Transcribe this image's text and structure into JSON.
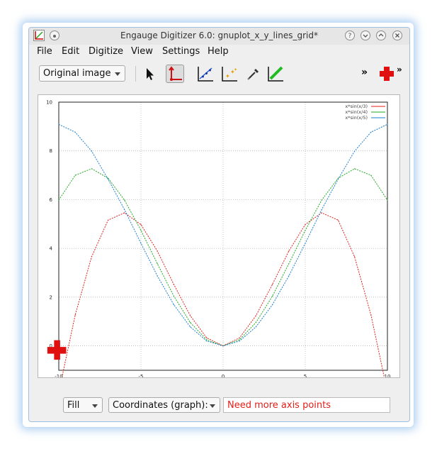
{
  "window": {
    "title": "Engauge Digitizer 6.0: gnuplot_x_y_lines_grid*"
  },
  "titlebar_buttons": {
    "help": "?"
  },
  "menu": {
    "file": "File",
    "edit": "Edit",
    "digitize": "Digitize",
    "view": "View",
    "settings": "Settings",
    "help": "Help"
  },
  "toolbar": {
    "background_select": "Original image",
    "overflow": "»",
    "overflow2": "»"
  },
  "tools": [
    "select-tool",
    "axis-point-tool",
    "curve-point-tool",
    "point-match-tool",
    "color-picker-tool",
    "segment-fill-tool",
    "checklist-tool"
  ],
  "statusbar": {
    "fill_select": "Fill",
    "coords_select": "Coordinates (graph):",
    "message": "Need more axis points"
  },
  "colors": {
    "red": "#e0201a",
    "green": "#22aa22",
    "blue": "#1a7fd0",
    "window_border": "#9fbfe0"
  },
  "chart_data": {
    "type": "line",
    "xlim": [
      -10,
      10
    ],
    "ylim": [
      -1,
      10
    ],
    "x_ticks": [
      "-10",
      "-5",
      "0",
      "5",
      "10"
    ],
    "y_ticks": [
      "10",
      "8",
      "6",
      "4",
      "2",
      "0"
    ],
    "grid": true,
    "legend": "top-right",
    "series": [
      {
        "name": "x*sin(x/3)",
        "color": "#e0201a",
        "x": [
          -10,
          -9,
          -8,
          -7,
          -6,
          -5,
          -4,
          -3,
          -2,
          -1,
          0,
          1,
          2,
          3,
          4,
          5,
          6,
          7,
          8,
          9,
          10
        ],
        "y": [
          -1.9,
          1.27,
          3.66,
          5.16,
          5.46,
          4.98,
          3.89,
          2.52,
          1.24,
          0.33,
          0,
          0.33,
          1.24,
          2.52,
          3.89,
          4.98,
          5.46,
          5.16,
          3.66,
          1.27,
          -1.9
        ]
      },
      {
        "name": "x*sin(x/4)",
        "color": "#22aa22",
        "x": [
          -10,
          -9,
          -8,
          -7,
          -6,
          -5,
          -4,
          -3,
          -2,
          -1,
          0,
          1,
          2,
          3,
          4,
          5,
          6,
          7,
          8,
          9,
          10
        ],
        "y": [
          5.98,
          7.0,
          7.27,
          6.88,
          5.98,
          4.74,
          3.37,
          2.04,
          0.96,
          0.25,
          0,
          0.25,
          0.96,
          2.04,
          3.37,
          4.74,
          5.98,
          6.88,
          7.27,
          7.0,
          5.98
        ]
      },
      {
        "name": "x*sin(x/5)",
        "color": "#1a7fd0",
        "x": [
          -10,
          -9,
          -8,
          -7,
          -6,
          -5,
          -4,
          -3,
          -2,
          -1,
          0,
          1,
          2,
          3,
          4,
          5,
          6,
          7,
          8,
          9,
          10
        ],
        "y": [
          9.09,
          8.77,
          7.99,
          6.84,
          5.59,
          4.21,
          2.87,
          1.69,
          0.78,
          0.2,
          0,
          0.2,
          0.78,
          1.69,
          2.87,
          4.21,
          5.59,
          6.84,
          7.99,
          8.77,
          9.09
        ]
      }
    ]
  }
}
